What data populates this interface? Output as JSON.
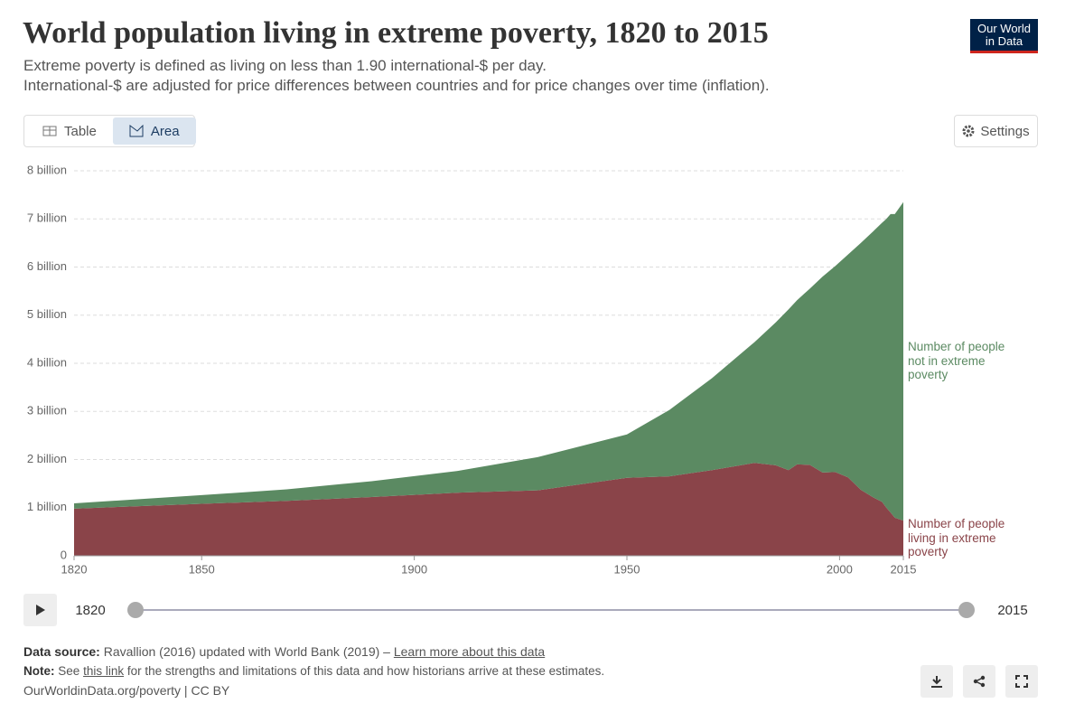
{
  "header": {
    "title": "World population living in extreme poverty, 1820 to 2015",
    "subtitle_lines": [
      "Extreme poverty is defined as living on less than 1.90 international-$ per day.",
      "International-$ are adjusted for price differences between countries and for price changes over time (inflation)."
    ],
    "logo": "Our World in Data"
  },
  "tabs": [
    "Table",
    "Area"
  ],
  "settings": "Settings",
  "chart_data": {
    "type": "stacked-area",
    "x": [
      1820,
      1850,
      1870,
      1890,
      1910,
      1929,
      1950,
      1960,
      1970,
      1980,
      1985,
      1988,
      1990,
      1993,
      1996,
      1999,
      2002,
      2005,
      2008,
      2010,
      2011,
      2012,
      2013,
      2015
    ],
    "series": [
      {
        "name": "Number of people living in extreme poverty",
        "color": "#8a4449",
        "values": [
          980000000,
          1080000000,
          1140000000,
          1220000000,
          1310000000,
          1360000000,
          1620000000,
          1650000000,
          1780000000,
          1930000000,
          1880000000,
          1780000000,
          1900000000,
          1890000000,
          1730000000,
          1740000000,
          1630000000,
          1370000000,
          1210000000,
          1120000000,
          1000000000,
          900000000,
          790000000,
          730000000
        ]
      },
      {
        "name": "Number of people not in extreme poverty",
        "color": "#5b8a62",
        "values": [
          110000000,
          180000000,
          240000000,
          330000000,
          450000000,
          690000000,
          900000000,
          1380000000,
          1910000000,
          2510000000,
          2970000000,
          3340000000,
          3410000000,
          3660000000,
          4070000000,
          4280000000,
          4630000000,
          5130000000,
          5540000000,
          5800000000,
          6000000000,
          6200000000,
          6310000000,
          6620000000
        ]
      }
    ],
    "xlim": [
      1820,
      2015
    ],
    "xticks": [
      1820,
      1850,
      1900,
      1950,
      2000,
      2015
    ],
    "ylim": [
      0,
      8000000000
    ],
    "yticks": [
      0,
      {
        "value": 1000000000,
        "label": "1 billion"
      },
      {
        "value": 2000000000,
        "label": "2 billion"
      },
      {
        "value": 3000000000,
        "label": "3 billion"
      },
      {
        "value": 4000000000,
        "label": "4 billion"
      },
      {
        "value": 5000000000,
        "label": "5 billion"
      },
      {
        "value": 6000000000,
        "label": "6 billion"
      },
      {
        "value": 7000000000,
        "label": "7 billion"
      },
      {
        "value": 8000000000,
        "label": "8 billion"
      }
    ],
    "grid": true
  },
  "timeline": {
    "start": 1820,
    "end": 2015
  },
  "footer": {
    "source_label": "Data source:",
    "source_text": "Ravallion (2016) updated with World Bank (2019) –",
    "source_link": "Learn more about this data",
    "note_label": "Note:",
    "note_pre": "See",
    "note_link": "this link",
    "note_post": "for the strengths and limitations of this data and how historians arrive at these estimates.",
    "url": "OurWorldinData.org/poverty | CC BY"
  }
}
